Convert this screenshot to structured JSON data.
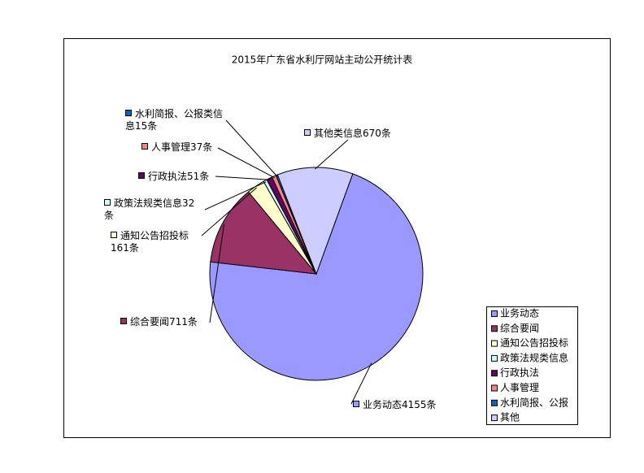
{
  "chart_data": {
    "type": "pie",
    "title": "2015年广东省水利厅网站主动公开统计表",
    "categories": [
      "业务动态",
      "综合要闻",
      "通知公告招投标",
      "政策法规类信息",
      "行政执法",
      "人事管理",
      "水利简报、公报",
      "其他"
    ],
    "values": [
      4155,
      711,
      161,
      32,
      51,
      37,
      15,
      670
    ],
    "value_labels": [
      "业务动态4155条",
      "综合要闻711条",
      "通知公告招投标161条",
      "政策法规类信息32条",
      "行政执法51条",
      "人事管理37条",
      "水利简报、公报类信息15条",
      "其他类信息670条"
    ],
    "colors": [
      "#9999ff",
      "#993366",
      "#ffffcc",
      "#ccffff",
      "#660066",
      "#ff8080",
      "#0066cc",
      "#ccccff"
    ],
    "legend": "right"
  }
}
